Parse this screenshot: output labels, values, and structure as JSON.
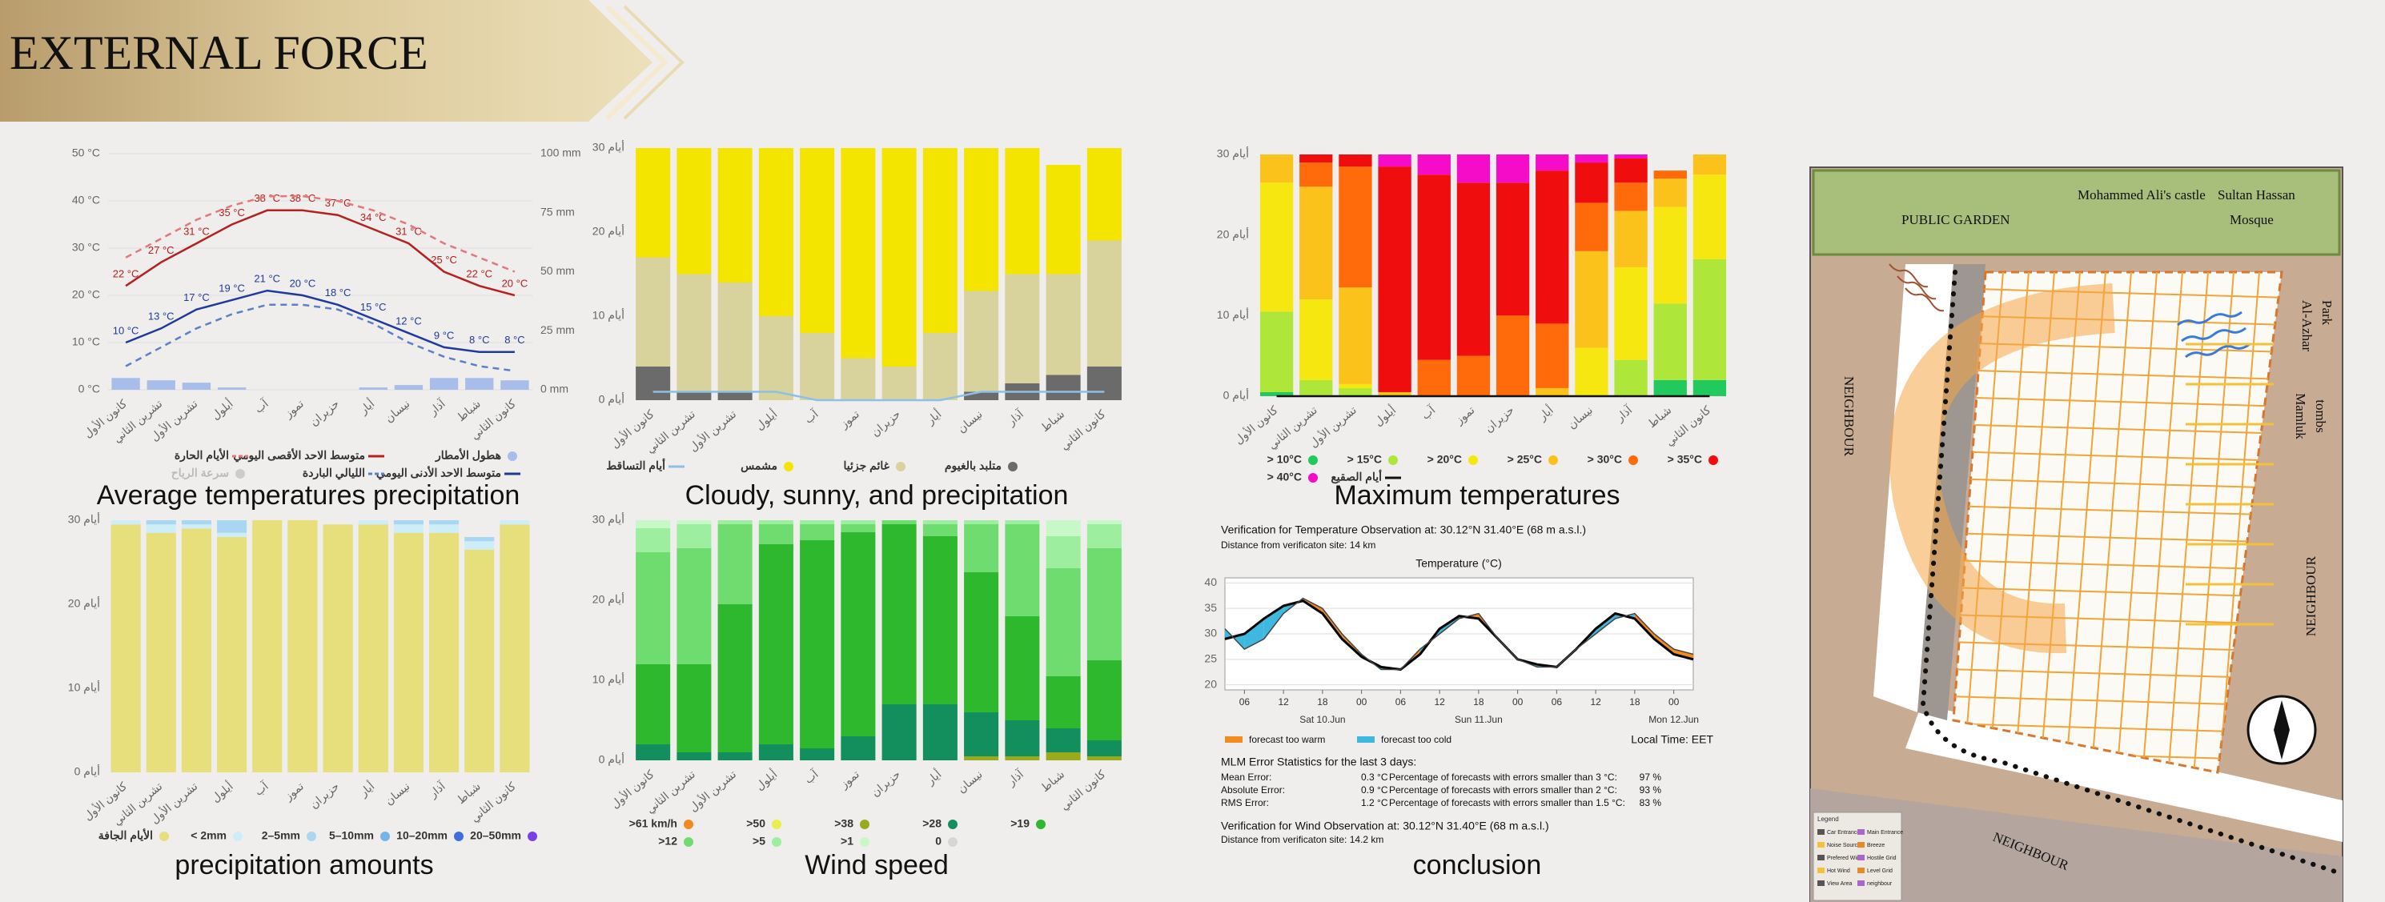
{
  "header": {
    "title": "EXTERNAL FORCE"
  },
  "chart_data": [
    {
      "type": "combo",
      "title": "Average temperatures  precipitation",
      "categories": [
        "كانون الأول",
        "تشرين الثاني",
        "تشرين الأول",
        "أيلول",
        "آب",
        "تموز",
        "حزيران",
        "أيار",
        "نيسان",
        "آذار",
        "شباط",
        "كانون الثاني"
      ],
      "ylim": [
        0,
        50
      ],
      "yticks": [
        {
          "value": 0,
          "label": "0 °C"
        },
        {
          "value": 10,
          "label": "10 °C"
        },
        {
          "value": 20,
          "label": "20 °C"
        },
        {
          "value": 30,
          "label": "30 °C"
        },
        {
          "value": 40,
          "label": "40 °C"
        },
        {
          "value": 50,
          "label": "50 °C"
        }
      ],
      "y2lim": [
        0,
        100
      ],
      "y2ticks": [
        {
          "value": 0,
          "label": "0 mm"
        },
        {
          "value": 25,
          "label": "25 mm"
        },
        {
          "value": 50,
          "label": "50 mm"
        },
        {
          "value": 75,
          "label": "75 mm"
        },
        {
          "value": 100,
          "label": "100 mm"
        }
      ],
      "grid": true,
      "series": [
        {
          "name": "هطول الأمطار",
          "color": "#a9bdea",
          "kind": "bar",
          "axis": "y2",
          "values": [
            5,
            4,
            3,
            1,
            0,
            0,
            0,
            1,
            2,
            5,
            5,
            4
          ]
        },
        {
          "name": "متوسط الاحد الأقصى اليومي",
          "color": "#b52020",
          "kind": "line",
          "values": [
            22,
            27,
            31,
            35,
            38,
            38,
            37,
            34,
            31,
            25,
            22,
            20
          ],
          "value_labels": [
            "22 °C",
            "27 °C",
            "31 °C",
            "35 °C",
            "38 °C",
            "38 °C",
            "37 °C",
            "34 °C",
            "31 °C",
            "25 °C",
            "22 °C",
            "20 °C"
          ]
        },
        {
          "name": "الأيام الحارة",
          "color": "#e27878",
          "kind": "line",
          "dash": true,
          "values": [
            28,
            32,
            36,
            39,
            41,
            41,
            40,
            38,
            35,
            31,
            28,
            25
          ]
        },
        {
          "name": "متوسط الاحد الأدنى اليومي",
          "color": "#1f3a9c",
          "kind": "line",
          "values": [
            10,
            13,
            17,
            19,
            21,
            20,
            18,
            15,
            12,
            9,
            8,
            8
          ],
          "value_labels": [
            "10 °C",
            "13 °C",
            "17 °C",
            "19 °C",
            "21 °C",
            "20 °C",
            "18 °C",
            "15 °C",
            "12 °C",
            "9 °C",
            "8 °C",
            "8 °C"
          ]
        },
        {
          "name": "الليالي الباردة",
          "color": "#5b80c8",
          "kind": "line",
          "dash": true,
          "values": [
            5,
            9,
            13,
            16,
            18,
            18,
            17,
            14,
            10,
            7,
            5,
            4
          ]
        }
      ],
      "inactive_legend": "سرعة الرياح"
    },
    {
      "type": "stacked",
      "title": "Cloudy, sunny, and precipitation",
      "categories": [
        "كانون الأول",
        "تشرين الثاني",
        "تشرين الأول",
        "أيلول",
        "آب",
        "تموز",
        "حزيران",
        "أيار",
        "نيسان",
        "آذار",
        "شباط",
        "كانون الثاني"
      ],
      "ylim": [
        0,
        30
      ],
      "yticks": [
        {
          "value": 0,
          "label": "0 أيام"
        },
        {
          "value": 10,
          "label": "10 أيام"
        },
        {
          "value": 20,
          "label": "20 أيام"
        },
        {
          "value": 30,
          "label": "30 أيام"
        }
      ],
      "series": [
        {
          "name": "متلبد بالغيوم",
          "color": "#6b6b6b",
          "values": [
            4,
            1,
            1,
            0,
            0,
            0,
            0,
            0,
            1,
            2,
            3,
            4
          ]
        },
        {
          "name": "غائم جزئيا",
          "color": "#d8d29c",
          "values": [
            13,
            14,
            13,
            10,
            8,
            5,
            4,
            8,
            12,
            13,
            12,
            15
          ]
        },
        {
          "name": "مشمس",
          "color": "#f3e500",
          "values": [
            13,
            15,
            16,
            20,
            22,
            25,
            26,
            22,
            17,
            15,
            13,
            11
          ]
        },
        {
          "name": "أيام التساقط",
          "color": "#8cc0e6",
          "kind": "line",
          "values": [
            1,
            1,
            1,
            1,
            0,
            0,
            0,
            0,
            1,
            1,
            1,
            1
          ]
        }
      ]
    },
    {
      "type": "stacked",
      "title": "Maximum temperatures",
      "categories": [
        "كانون الأول",
        "تشرين الثاني",
        "تشرين الأول",
        "أيلول",
        "آب",
        "تموز",
        "حزيران",
        "أيار",
        "نيسان",
        "آذار",
        "شباط",
        "كانون الثاني"
      ],
      "ylim": [
        0,
        30
      ],
      "yticks": [
        {
          "value": 0,
          "label": "0 أيام"
        },
        {
          "value": 10,
          "label": "10 أيام"
        },
        {
          "value": 20,
          "label": "20 أيام"
        },
        {
          "value": 30,
          "label": "30 أيام"
        }
      ],
      "series": [
        {
          "name": "> 10°C",
          "color": "#22c95c",
          "values": [
            0.5,
            0,
            0,
            0,
            0,
            0,
            0,
            0,
            0,
            0,
            2,
            2
          ]
        },
        {
          "name": "> 15°C",
          "color": "#aee63a",
          "values": [
            10,
            2,
            1,
            0,
            0,
            0,
            0,
            0,
            0,
            4.5,
            9.5,
            15
          ]
        },
        {
          "name": "> 20°C",
          "color": "#f5e70f",
          "values": [
            16,
            10,
            0.5,
            0,
            0,
            0,
            0,
            0,
            6,
            11.5,
            12,
            10.5
          ]
        },
        {
          "name": "> 25°C",
          "color": "#fbc21b",
          "values": [
            3.5,
            14,
            12,
            0.5,
            0,
            0,
            0,
            1,
            12,
            7,
            3.5,
            2.5
          ]
        },
        {
          "name": "> 30°C",
          "color": "#ff6a0a",
          "values": [
            0,
            3,
            15,
            0,
            4.5,
            5,
            10,
            8,
            6,
            3.5,
            1,
            0
          ]
        },
        {
          "name": "> 35°C",
          "color": "#f00d0d",
          "values": [
            0,
            1,
            1.5,
            28,
            23,
            21.5,
            16.5,
            19,
            5,
            3,
            0,
            0
          ]
        },
        {
          "name": "> 40°C",
          "color": "#f50cc8",
          "values": [
            0,
            0,
            0,
            1.5,
            2.5,
            3.5,
            3.5,
            2,
            1,
            0.5,
            0,
            0
          ]
        },
        {
          "name": "أيام الصقيع",
          "color": "#111111",
          "kind": "line",
          "values": [
            0,
            0,
            0,
            0,
            0,
            0,
            0,
            0,
            0,
            0,
            0,
            0
          ]
        }
      ]
    },
    {
      "type": "stacked",
      "title": "precipitation amounts",
      "categories": [
        "كانون الأول",
        "تشرين الثاني",
        "تشرين الأول",
        "أيلول",
        "آب",
        "تموز",
        "حزيران",
        "أيار",
        "نيسان",
        "آذار",
        "شباط",
        "كانون الثاني"
      ],
      "ylim": [
        0,
        30
      ],
      "yticks": [
        {
          "value": 0,
          "label": "0 أيام"
        },
        {
          "value": 10,
          "label": "10 أيام"
        },
        {
          "value": 20,
          "label": "20 أيام"
        },
        {
          "value": 30,
          "label": "30 أيام"
        }
      ],
      "series": [
        {
          "name": "الأيام الجافة",
          "color": "#e6df7b",
          "values": [
            29.5,
            28.5,
            29,
            28,
            30,
            30,
            29.5,
            29.5,
            28.5,
            28.5,
            26.5,
            29.5
          ]
        },
        {
          "name": "< 2mm",
          "color": "#cdeef8",
          "values": [
            0.5,
            1,
            0.5,
            0.5,
            0,
            0,
            0,
            0.5,
            1,
            1,
            1,
            0.5
          ]
        },
        {
          "name": "2–5mm",
          "color": "#a9d7f2",
          "values": [
            0,
            0.5,
            0.5,
            1.5,
            0,
            0,
            0,
            0,
            0.5,
            0.5,
            0.5,
            0
          ]
        },
        {
          "name": "5–10mm",
          "color": "#74b3ec",
          "values": [
            0,
            0,
            0,
            0,
            0,
            0,
            0,
            0,
            0,
            0,
            0,
            0
          ]
        },
        {
          "name": "10–20mm",
          "color": "#3d6fe0",
          "values": [
            0,
            0,
            0,
            0,
            0,
            0,
            0,
            0,
            0,
            0,
            0,
            0
          ]
        },
        {
          "name": "20–50mm",
          "color": "#7a3fe6",
          "values": [
            0,
            0,
            0,
            0,
            0,
            0,
            0,
            0,
            0,
            0,
            0,
            0
          ]
        }
      ]
    },
    {
      "type": "stacked",
      "title": "Wind speed",
      "categories": [
        "كانون الأول",
        "تشرين الثاني",
        "تشرين الأول",
        "أيلول",
        "آب",
        "تموز",
        "حزيران",
        "أيار",
        "نيسان",
        "آذار",
        "شباط",
        "كانون الثاني"
      ],
      "ylim": [
        0,
        30
      ],
      "yticks": [
        {
          "value": 0,
          "label": "0 أيام"
        },
        {
          "value": 10,
          "label": "10 أيام"
        },
        {
          "value": 20,
          "label": "20 أيام"
        },
        {
          "value": 30,
          "label": "30 أيام"
        }
      ],
      "series": [
        {
          "name": ">61 km/h",
          "color": "#f08a20",
          "values": [
            0,
            0,
            0,
            0,
            0,
            0,
            0,
            0,
            0,
            0,
            0,
            0
          ]
        },
        {
          "name": ">50",
          "color": "#e9ee4a",
          "values": [
            0,
            0,
            0,
            0,
            0,
            0,
            0,
            0,
            0,
            0,
            0,
            0
          ]
        },
        {
          "name": ">38",
          "color": "#9aaa1e",
          "values": [
            0,
            0,
            0,
            0,
            0,
            0,
            0,
            0,
            0.5,
            0.5,
            1,
            0.5
          ]
        },
        {
          "name": ">28",
          "color": "#138f5e",
          "values": [
            2,
            1,
            1,
            2,
            1.5,
            3,
            7,
            7,
            5.5,
            4.5,
            3,
            2
          ]
        },
        {
          "name": ">19",
          "color": "#2db82d",
          "values": [
            10,
            11,
            18.5,
            25,
            26,
            25.5,
            22.5,
            21,
            17.5,
            13,
            6.5,
            10
          ]
        },
        {
          "name": ">12",
          "color": "#6fdc6f",
          "values": [
            14,
            14.5,
            10,
            2.5,
            2,
            1,
            0.5,
            1.5,
            6,
            11.5,
            13.5,
            14
          ]
        },
        {
          "name": ">5",
          "color": "#9eeea0",
          "values": [
            3,
            3,
            0.5,
            0.5,
            0.5,
            0.5,
            0,
            0.5,
            0.5,
            0.5,
            4,
            3
          ]
        },
        {
          "name": ">1",
          "color": "#c8f7c8",
          "values": [
            1,
            0.5,
            0,
            0,
            0,
            0,
            0,
            0,
            0,
            0,
            2,
            0.5
          ]
        },
        {
          "name": "0",
          "color": "#d6d6d6",
          "values": [
            0,
            0,
            0,
            0,
            0,
            0,
            0,
            0,
            0,
            0,
            0,
            0
          ]
        }
      ]
    },
    {
      "type": "verification",
      "title": "conclusion",
      "heading": "Verification for Temperature Observation at:  30.12°N 31.40°E (68 m a.s.l.)",
      "distance": "Distance from verificaton site:  14 km",
      "y_label": "Temperature (°C)",
      "x": [
        3,
        6,
        9,
        12,
        15,
        18,
        21,
        24,
        27,
        30,
        33,
        36,
        39,
        42,
        45,
        48,
        51,
        54,
        57,
        60,
        63,
        66,
        69,
        72,
        75
      ],
      "xlim": [
        3,
        75
      ],
      "xticks": [
        {
          "value": 6,
          "label": "06"
        },
        12,
        18,
        {
          "value": 24,
          "label": "00"
        },
        {
          "value": 30,
          "label": "06"
        },
        {
          "value": 36,
          "label": "12"
        },
        {
          "value": 42,
          "label": "18"
        },
        {
          "value": 48,
          "label": "00"
        },
        {
          "value": 54,
          "label": "06"
        },
        {
          "value": 60,
          "label": "12"
        },
        {
          "value": 66,
          "label": "18"
        },
        {
          "value": 72,
          "label": "00"
        }
      ],
      "x_day_labels": [
        {
          "value": 18,
          "label": "Sat 10.Jun"
        },
        {
          "value": 42,
          "label": "Sun 11.Jun"
        },
        {
          "value": 72,
          "label": "Mon 12.Jun"
        }
      ],
      "ylim": [
        19,
        41
      ],
      "yticks": [
        20,
        25,
        30,
        35,
        40
      ],
      "grid": true,
      "series": [
        {
          "color": "#000000",
          "values": [
            29,
            30,
            33,
            35.5,
            36.5,
            34,
            29,
            25.5,
            23.5,
            23,
            26,
            31,
            33.5,
            33,
            29,
            25,
            24,
            23.5,
            27,
            31,
            34,
            33,
            29,
            26,
            25
          ]
        },
        {
          "color": "#444444",
          "values": [
            31,
            27,
            29,
            34,
            37,
            35,
            30,
            26,
            23,
            23,
            27,
            30,
            33,
            34,
            29,
            25,
            23.5,
            23.5,
            27,
            30,
            33,
            34,
            30,
            27,
            26
          ]
        }
      ],
      "fill_legend": [
        {
          "label": "forecast too warm",
          "color": "#f28c1e"
        },
        {
          "label": "forecast too cold",
          "color": "#3fb8e0"
        }
      ],
      "local_time": "Local Time: EET",
      "stats_heading": "MLM Error Statistics for the last 3 days:",
      "stats": [
        [
          "Mean Error:",
          "0.3 °C",
          "Percentage of forecasts with errors smaller than 3 °C:",
          "97 %"
        ],
        [
          "Absolute Error:",
          "0.9 °C",
          "Percentage of forecasts with errors smaller than 2 °C:",
          "93 %"
        ],
        [
          "RMS Error:",
          "1.2 °C",
          "Percentage of forecasts with errors smaller than 1.5 °C:",
          "83 %"
        ]
      ],
      "wind_heading": "Verification for Wind Observation at:  30.12°N 31.40°E (68 m a.s.l.)",
      "wind_distance": "Distance from verificaton site:  14.2 km"
    }
  ],
  "site_plan": {
    "labels": {
      "garden": "PUBLIC GARDEN",
      "castle": "Mohammed Ali's castle",
      "mosque_1": "Sultan Hassan",
      "mosque_2": "Mosque",
      "park_1": "Al-Azhar",
      "park_2": "Park",
      "neighbour_west": "NEIGHBOUR",
      "tombs_1": "Mamluk",
      "tombs_2": "tombs",
      "neighbour_east": "NEIGHBOUR",
      "neighbour_south": "NEIGHBOUR"
    },
    "legend": {
      "title": "Legend",
      "items": [
        "Car Entrance",
        "Main Entrance",
        "Noise Source",
        "Breeze",
        "Prefered Wind",
        "Hostile Grid",
        "Hot Wind",
        "Level Grid",
        "View Area",
        "neighbour"
      ]
    }
  }
}
